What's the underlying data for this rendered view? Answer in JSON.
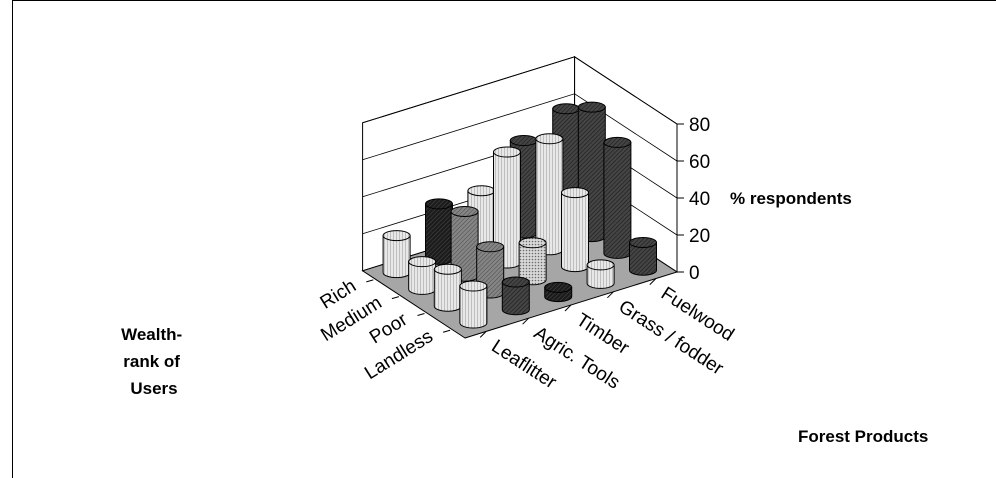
{
  "chart_data": {
    "type": "bar",
    "variant": "3d-cylinder",
    "title": "",
    "zlabel": "% respondents",
    "ylabel": [
      "Wealth-",
      "rank of",
      "Users"
    ],
    "xlabel": "Forest Products",
    "zlim": [
      0,
      80
    ],
    "zticks": [
      "0",
      "20",
      "40",
      "60",
      "80"
    ],
    "categories": [
      "Leaflitter",
      "Agric. Tools",
      "Timber",
      "Grass / fodder",
      "Fuelwood"
    ],
    "series": [
      {
        "name": "Rich",
        "values": [
          20,
          30,
          30,
          50,
          60
        ]
      },
      {
        "name": "Medium",
        "values": [
          15,
          35,
          60,
          60,
          70
        ]
      },
      {
        "name": "Poor",
        "values": [
          20,
          25,
          20,
          40,
          60
        ]
      },
      {
        "name": "Landless",
        "values": [
          20,
          15,
          5,
          10,
          15
        ]
      }
    ],
    "grid": true,
    "floor_color": "#a6a6a6"
  }
}
